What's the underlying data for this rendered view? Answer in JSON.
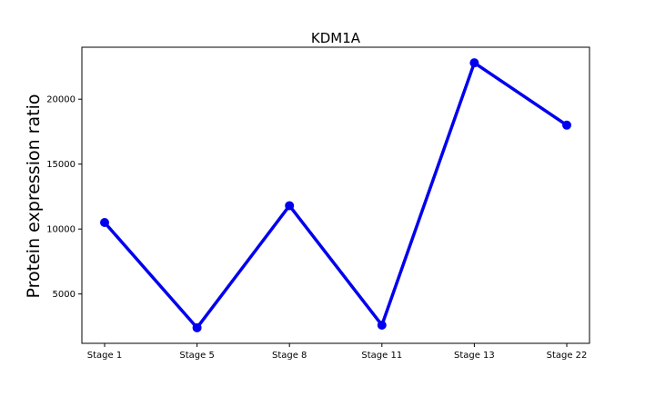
{
  "chart_data": {
    "type": "line",
    "title": "KDM1A",
    "xlabel": "",
    "ylabel": "Protein expression ratio",
    "categories": [
      "Stage 1",
      "Stage 5",
      "Stage 8",
      "Stage 11",
      "Stage 13",
      "Stage 22"
    ],
    "series": [
      {
        "values": [
          10500,
          2400,
          11800,
          2600,
          22800,
          18000
        ],
        "color": "#0000ee"
      }
    ],
    "yticks": [
      5000,
      10000,
      15000,
      20000
    ],
    "ylim": [
      1200,
      24000
    ],
    "grid": false,
    "legend": "none"
  }
}
